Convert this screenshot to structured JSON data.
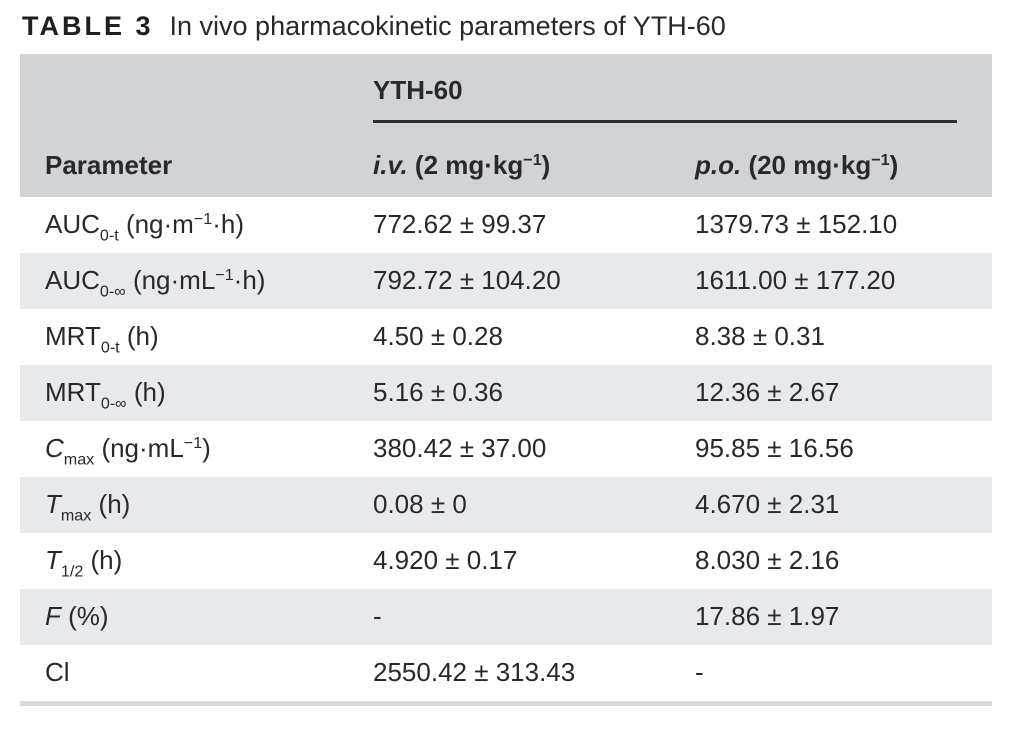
{
  "title": {
    "tag": "TABLE 3",
    "text": "In vivo pharmacokinetic parameters of YTH-60"
  },
  "table": {
    "span_header": "YTH-60",
    "col_headers": {
      "parameter": [
        {
          "t": "Parameter"
        }
      ],
      "iv": [
        {
          "t": "i.v.",
          "f": "i"
        },
        {
          "t": " (2 mg·kg"
        },
        {
          "t": "−1",
          "f": "sup"
        },
        {
          "t": ")"
        }
      ],
      "po": [
        {
          "t": "p.o.",
          "f": "i"
        },
        {
          "t": " (20 mg·kg"
        },
        {
          "t": "−1",
          "f": "sup"
        },
        {
          "t": ")"
        }
      ]
    },
    "rows": [
      {
        "param": [
          {
            "t": "AUC"
          },
          {
            "t": "0-t",
            "f": "sub"
          },
          {
            "t": " (ng·m"
          },
          {
            "t": "−1",
            "f": "sup"
          },
          {
            "t": "·h)"
          }
        ],
        "iv": "772.62 ± 99.37",
        "po": "1379.73 ± 152.10"
      },
      {
        "param": [
          {
            "t": "AUC"
          },
          {
            "t": "0-∞",
            "f": "sub"
          },
          {
            "t": " (ng·mL"
          },
          {
            "t": "−1",
            "f": "sup"
          },
          {
            "t": "·h)"
          }
        ],
        "iv": "792.72 ± 104.20",
        "po": "1611.00 ± 177.20"
      },
      {
        "param": [
          {
            "t": "MRT"
          },
          {
            "t": "0-t",
            "f": "sub"
          },
          {
            "t": " (h)"
          }
        ],
        "iv": "4.50 ± 0.28",
        "po": "8.38 ± 0.31"
      },
      {
        "param": [
          {
            "t": "MRT"
          },
          {
            "t": "0-∞",
            "f": "sub"
          },
          {
            "t": " (h)"
          }
        ],
        "iv": "5.16 ± 0.36",
        "po": "12.36 ± 2.67"
      },
      {
        "param": [
          {
            "t": "C",
            "f": "i"
          },
          {
            "t": "max",
            "f": "sub"
          },
          {
            "t": " (ng·mL"
          },
          {
            "t": "−1",
            "f": "sup"
          },
          {
            "t": ")"
          }
        ],
        "iv": "380.42 ± 37.00",
        "po": "95.85 ± 16.56"
      },
      {
        "param": [
          {
            "t": "T",
            "f": "i"
          },
          {
            "t": "max",
            "f": "sub"
          },
          {
            "t": " (h)"
          }
        ],
        "iv": "0.08 ± 0",
        "po": "4.670 ± 2.31"
      },
      {
        "param": [
          {
            "t": "T",
            "f": "i"
          },
          {
            "t": "1/2",
            "f": "sub"
          },
          {
            "t": " (h)"
          }
        ],
        "iv": "4.920 ± 0.17",
        "po": "8.030 ± 2.16"
      },
      {
        "param": [
          {
            "t": "F",
            "f": "i"
          },
          {
            "t": " (%)"
          }
        ],
        "iv": "-",
        "po": "17.86 ± 1.97"
      },
      {
        "param": [
          {
            "t": "Cl"
          }
        ],
        "iv": "2550.42 ± 313.43",
        "po": "-"
      }
    ]
  },
  "colors": {
    "header_bg": "#d2d3d5",
    "row_alt_bg": "#e8e9eb",
    "text": "#27292b",
    "rule": "#2b2d2f",
    "bottom_bar": "#d9dadc"
  }
}
